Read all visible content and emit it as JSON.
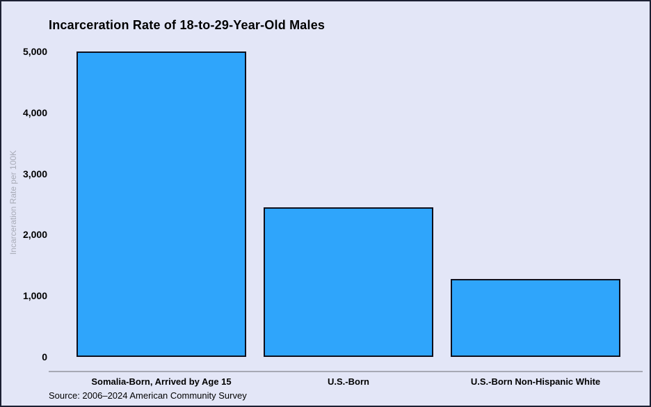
{
  "chart_data": {
    "type": "bar",
    "title": "Incarceration Rate of 18-to-29-Year-Old Males",
    "ylabel": "Incarceration Rate per 100K",
    "xlabel": "",
    "categories": [
      "Somalia-Born, Arrived by Age 15",
      "U.S.-Born",
      "U.S.-Born Non-Hispanic White"
    ],
    "values": [
      5000,
      2450,
      1280
    ],
    "ylim": [
      0,
      5000
    ],
    "yticks": [
      0,
      1000,
      2000,
      3000,
      4000,
      5000
    ],
    "ytick_labels": [
      "0",
      "1,000",
      "2,000",
      "3,000",
      "4,000",
      "5,000"
    ],
    "grid": false,
    "legend": false,
    "bar_color": "#2fa5fb",
    "bar_border_color": "#0d0f1c",
    "background_color": "#e3e6f7",
    "source": "Source: 2006–2024 American Community Survey"
  }
}
